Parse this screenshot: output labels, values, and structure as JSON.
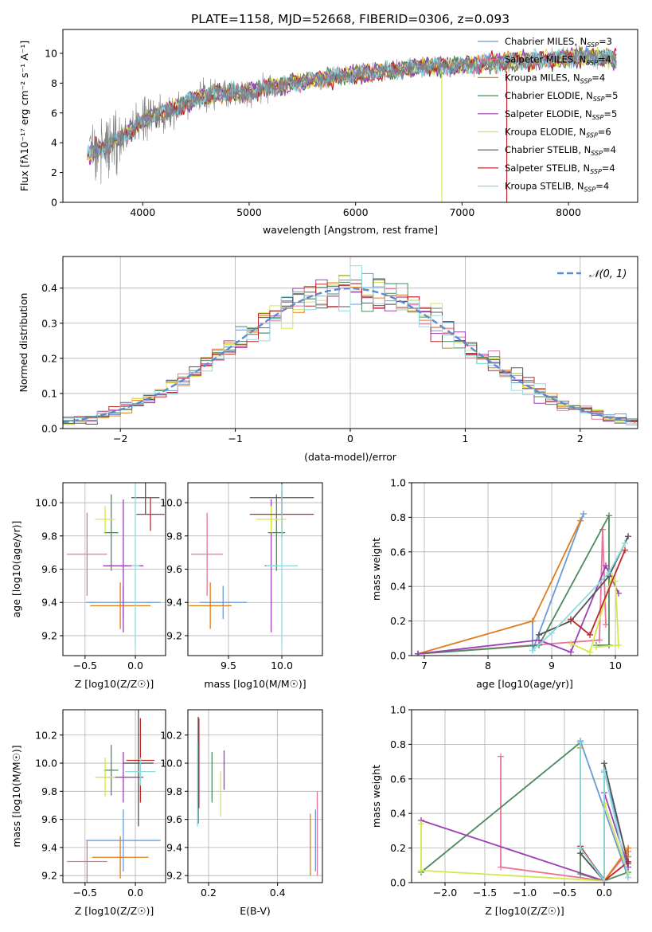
{
  "figure": {
    "title": "PLATE=1158, MJD=52668, FIBERID=0306, z=0.093"
  },
  "model_colors": {
    "Chabrier MILES": "#6a9bd8",
    "Salpeter MILES": "#e8749a",
    "Kroupa MILES": "#e07b1a",
    "Chabrier ELODIE": "#4e8a5f",
    "Salpeter ELODIE": "#9b3fb5",
    "Kroupa ELODIE": "#d4e84a",
    "Chabrier STELIB": "#555555",
    "Salpeter STELIB": "#c0282a",
    "Kroupa STELIB": "#8fdce0"
  },
  "chart_data": [
    {
      "id": "spectrum",
      "type": "line",
      "xlabel": "wavelength [Angstrom, rest frame]",
      "ylabel": "Flux [f$_\\lambda$10$^{-17}$ erg cm$^{-2}$ s$^{-1}$ A$^{-1}$]",
      "ylabel_display": "Flux [fλ10⁻¹⁷ erg cm⁻² s⁻¹ A⁻¹]",
      "xlim": [
        3250,
        8650
      ],
      "ylim": [
        0,
        11.6
      ],
      "xticks": [
        4000,
        5000,
        6000,
        7000,
        8000
      ],
      "yticks": [
        0,
        2,
        4,
        6,
        8,
        10
      ],
      "legend_position": "top-right",
      "legend": [
        {
          "model": "Chabrier MILES",
          "label": "Chabrier MILES, N",
          "sub": "SSP",
          "suffix": "=3"
        },
        {
          "model": "Salpeter MILES",
          "label": "Salpeter MILES, N",
          "sub": "SSP",
          "suffix": "=4"
        },
        {
          "model": "Kroupa MILES",
          "label": "Kroupa MILES, N",
          "sub": "SSP",
          "suffix": "=4"
        },
        {
          "model": "Chabrier ELODIE",
          "label": "Chabrier ELODIE, N",
          "sub": "SSP",
          "suffix": "=5"
        },
        {
          "model": "Salpeter ELODIE",
          "label": "Salpeter ELODIE, N",
          "sub": "SSP",
          "suffix": "=5"
        },
        {
          "model": "Kroupa ELODIE",
          "label": "Kroupa ELODIE, N",
          "sub": "SSP",
          "suffix": "=6"
        },
        {
          "model": "Chabrier STELIB",
          "label": "Chabrier STELIB, N",
          "sub": "SSP",
          "suffix": "=4"
        },
        {
          "model": "Salpeter STELIB",
          "label": "Salpeter STELIB, N",
          "sub": "SSP",
          "suffix": "=4"
        },
        {
          "model": "Kroupa STELIB",
          "label": "Kroupa STELIB, N",
          "sub": "SSP",
          "suffix": "=4"
        }
      ],
      "continuum_anchors": {
        "x": [
          3500,
          3560,
          3650,
          3800,
          3950,
          4100,
          4300,
          4500,
          4700,
          5000,
          5200,
          5500,
          5800,
          6000,
          6300,
          6600,
          7000,
          7400,
          7800,
          8200,
          8450
        ],
        "y": [
          3.4,
          3.8,
          3.9,
          4.3,
          5.2,
          5.8,
          6.3,
          7.0,
          7.3,
          7.4,
          7.7,
          8.1,
          8.4,
          8.6,
          8.8,
          9.1,
          9.2,
          9.4,
          9.6,
          9.8,
          9.6
        ]
      },
      "data_noise_sigma": 1.4,
      "spikes": [
        {
          "model": "Kroupa ELODIE",
          "x": 6810
        },
        {
          "model": "Salpeter STELIB",
          "x": 7420
        }
      ]
    },
    {
      "id": "residuals",
      "type": "histogram",
      "xlabel": "(data-model)/error",
      "ylabel": "Normed distribution",
      "xlim": [
        -2.5,
        2.5
      ],
      "ylim": [
        0,
        0.49
      ],
      "xticks": [
        -2,
        -1,
        0,
        1,
        2
      ],
      "yticks": [
        0.0,
        0.1,
        0.2,
        0.3,
        0.4
      ],
      "bin_width": 0.1,
      "reference_curve": {
        "name": "N(0,1)",
        "label_display": "𝒩(0, 1)",
        "sigma": 1.0,
        "color": "#5b8bd0"
      },
      "legend_position": "top-right"
    },
    {
      "id": "age_vs_Z",
      "type": "errorbar",
      "xlabel": "Z [log10(Z/Z☉)]",
      "ylabel": "age  [log10(age/yr)]",
      "xlim": [
        -0.72,
        0.3
      ],
      "ylim": [
        9.08,
        10.12
      ],
      "xticks": [
        -0.5,
        0.0
      ],
      "yticks": [
        9.2,
        9.4,
        9.6,
        9.8,
        10.0
      ],
      "points": [
        {
          "model": "Chabrier MILES",
          "x": -0.12,
          "xerr": 0.37,
          "y": 9.4,
          "yerr": 0.1
        },
        {
          "model": "Salpeter MILES",
          "x": -0.48,
          "xerr": 0.2,
          "y": 9.69,
          "yerr": 0.25
        },
        {
          "model": "Kroupa MILES",
          "x": -0.15,
          "xerr": 0.3,
          "y": 9.38,
          "yerr": 0.14
        },
        {
          "model": "Chabrier ELODIE",
          "x": -0.24,
          "xerr": 0.07,
          "y": 9.82,
          "yerr": 0.23
        },
        {
          "model": "Salpeter ELODIE",
          "x": -0.12,
          "xerr": 0.2,
          "y": 9.62,
          "yerr": 0.4
        },
        {
          "model": "Kroupa ELODIE",
          "x": -0.3,
          "xerr": 0.1,
          "y": 9.9,
          "yerr": 0.08
        },
        {
          "model": "Chabrier STELIB",
          "x": 0.1,
          "xerr": 0.14,
          "y": 10.03,
          "yerr": 0.1
        },
        {
          "model": "Salpeter STELIB",
          "x": 0.15,
          "xerr": 0.14,
          "y": 9.93,
          "yerr": 0.1
        },
        {
          "model": "Kroupa STELIB",
          "x": 0.0,
          "xerr": 0.04,
          "y": 9.62,
          "yerr": 0.49
        }
      ]
    },
    {
      "id": "age_vs_mass",
      "type": "errorbar",
      "xlabel": "mass [log10(M/M☉)]",
      "ylabel": "",
      "xlim": [
        9.12,
        10.38
      ],
      "ylim": [
        9.08,
        10.12
      ],
      "xticks": [
        9.5,
        10.0
      ],
      "yticks": [
        9.2,
        9.4,
        9.6,
        9.8,
        10.0
      ],
      "points": [
        {
          "model": "Chabrier MILES",
          "x": 9.45,
          "xerr": 0.22,
          "y": 9.4,
          "yerr": 0.1
        },
        {
          "model": "Salpeter MILES",
          "x": 9.3,
          "xerr": 0.15,
          "y": 9.69,
          "yerr": 0.25
        },
        {
          "model": "Kroupa MILES",
          "x": 9.33,
          "xerr": 0.2,
          "y": 9.38,
          "yerr": 0.14
        },
        {
          "model": "Chabrier ELODIE",
          "x": 9.95,
          "xerr": 0.08,
          "y": 9.82,
          "yerr": 0.23
        },
        {
          "model": "Salpeter ELODIE",
          "x": 9.9,
          "xerr": 0.06,
          "y": 9.62,
          "yerr": 0.4
        },
        {
          "model": "Kroupa ELODIE",
          "x": 9.9,
          "xerr": 0.14,
          "y": 9.9,
          "yerr": 0.08
        },
        {
          "model": "Chabrier STELIB",
          "x": 10.0,
          "xerr": 0.3,
          "y": 10.03,
          "yerr": 0.1
        },
        {
          "model": "Salpeter STELIB",
          "x": 10.0,
          "xerr": 0.3,
          "y": 9.93,
          "yerr": 0.14
        },
        {
          "model": "Kroupa STELIB",
          "x": 10.0,
          "xerr": 0.15,
          "y": 9.62,
          "yerr": 0.49
        }
      ]
    },
    {
      "id": "weight_vs_age",
      "type": "line",
      "xlabel": "age  [log10(age/yr)]",
      "ylabel": "mass weight",
      "xlim": [
        6.8,
        10.35
      ],
      "ylim": [
        0,
        1.0
      ],
      "xticks": [
        7,
        8,
        9,
        10
      ],
      "yticks": [
        0.0,
        0.2,
        0.4,
        0.6,
        0.8,
        1.0
      ],
      "series": [
        {
          "model": "Chabrier MILES",
          "x": [
            8.7,
            8.7,
            9.5
          ],
          "y": [
            0.2,
            0.03,
            0.82
          ]
        },
        {
          "model": "Salpeter MILES",
          "x": [
            6.9,
            9.75,
            9.8,
            9.85
          ],
          "y": [
            0.01,
            0.09,
            0.73,
            0.18
          ]
        },
        {
          "model": "Kroupa MILES",
          "x": [
            6.9,
            8.7,
            9.45
          ],
          "y": [
            0.01,
            0.2,
            0.78
          ]
        },
        {
          "model": "Chabrier ELODIE",
          "x": [
            6.9,
            8.8,
            9.9,
            9.9,
            9.7
          ],
          "y": [
            0.01,
            0.06,
            0.81,
            0.06,
            0.06
          ]
        },
        {
          "model": "Salpeter ELODIE",
          "x": [
            6.9,
            8.8,
            9.3,
            9.85,
            10.05
          ],
          "y": [
            0.01,
            0.09,
            0.02,
            0.52,
            0.36
          ]
        },
        {
          "model": "Kroupa ELODIE",
          "x": [
            9.3,
            9.6,
            9.95,
            10.0,
            10.05,
            9.7
          ],
          "y": [
            0.07,
            0.02,
            0.46,
            0.43,
            0.06,
            0.05
          ]
        },
        {
          "model": "Chabrier STELIB",
          "x": [
            8.8,
            9.3,
            9.9,
            10.2
          ],
          "y": [
            0.12,
            0.2,
            0.46,
            0.69
          ]
        },
        {
          "model": "Salpeter STELIB",
          "x": [
            9.3,
            9.6,
            10.15
          ],
          "y": [
            0.21,
            0.12,
            0.61
          ]
        },
        {
          "model": "Kroupa STELIB",
          "x": [
            8.7,
            9.0,
            9.9,
            10.15
          ],
          "y": [
            0.03,
            0.13,
            0.48,
            0.65
          ]
        }
      ]
    },
    {
      "id": "mass_vs_Z",
      "type": "errorbar",
      "xlabel": "Z [log10(Z/Z☉)]",
      "ylabel": "mass [log10(M/M☉)]",
      "xlim": [
        -0.72,
        0.3
      ],
      "ylim": [
        9.15,
        10.38
      ],
      "xticks": [
        -0.5,
        0.0
      ],
      "yticks": [
        9.2,
        9.4,
        9.6,
        9.8,
        10.0,
        10.2
      ],
      "points": [
        {
          "model": "Chabrier MILES",
          "x": -0.12,
          "xerr": 0.37,
          "y": 9.45,
          "yerr": 0.22
        },
        {
          "model": "Salpeter MILES",
          "x": -0.48,
          "xerr": 0.2,
          "y": 9.3,
          "yerr": 0.15
        },
        {
          "model": "Kroupa MILES",
          "x": -0.15,
          "xerr": 0.28,
          "y": 9.33,
          "yerr": 0.15
        },
        {
          "model": "Chabrier ELODIE",
          "x": -0.24,
          "xerr": 0.07,
          "y": 9.95,
          "yerr": 0.18
        },
        {
          "model": "Salpeter ELODIE",
          "x": -0.12,
          "xerr": 0.2,
          "y": 9.9,
          "yerr": 0.18
        },
        {
          "model": "Kroupa ELODIE",
          "x": -0.3,
          "xerr": 0.1,
          "y": 9.9,
          "yerr": 0.14
        },
        {
          "model": "Chabrier STELIB",
          "x": 0.03,
          "xerr": 0.15,
          "y": 10.0,
          "yerr": 0.45
        },
        {
          "model": "Salpeter STELIB",
          "x": 0.05,
          "xerr": 0.14,
          "y": 10.02,
          "yerr": 0.3
        },
        {
          "model": "Kroupa STELIB",
          "x": 0.05,
          "xerr": 0.15,
          "y": 9.94,
          "yerr": 0.1
        }
      ]
    },
    {
      "id": "mass_vs_ebv",
      "type": "errorbar",
      "xlabel": "E(B-V)",
      "ylabel": "",
      "xlim": [
        0.14,
        0.53
      ],
      "ylim": [
        9.15,
        10.38
      ],
      "xticks": [
        0.2,
        0.4
      ],
      "yticks": [
        9.2,
        9.4,
        9.6,
        9.8,
        10.0,
        10.2
      ],
      "points": [
        {
          "model": "Chabrier MILES",
          "x": 0.51,
          "xerr": 0,
          "y": 9.45,
          "yerr": 0.22
        },
        {
          "model": "Salpeter MILES",
          "x": 0.515,
          "xerr": 0,
          "y": 9.5,
          "yerr": 0.3
        },
        {
          "model": "Kroupa MILES",
          "x": 0.495,
          "xerr": 0,
          "y": 9.42,
          "yerr": 0.22
        },
        {
          "model": "Chabrier ELODIE",
          "x": 0.21,
          "xerr": 0,
          "y": 9.9,
          "yerr": 0.18
        },
        {
          "model": "Salpeter ELODIE",
          "x": 0.245,
          "xerr": 0,
          "y": 9.95,
          "yerr": 0.14
        },
        {
          "model": "Kroupa ELODIE",
          "x": 0.235,
          "xerr": 0,
          "y": 9.78,
          "yerr": 0.16
        },
        {
          "model": "Chabrier STELIB",
          "x": 0.17,
          "xerr": 0,
          "y": 9.95,
          "yerr": 0.38
        },
        {
          "model": "Salpeter STELIB",
          "x": 0.172,
          "xerr": 0,
          "y": 10.0,
          "yerr": 0.32
        },
        {
          "model": "Kroupa STELIB",
          "x": 0.168,
          "xerr": 0,
          "y": 9.85,
          "yerr": 0.3
        }
      ]
    },
    {
      "id": "weight_vs_Z",
      "type": "line",
      "xlabel": "Z [log10(Z/Z☉)]",
      "ylabel": "mass weight",
      "xlim": [
        -2.42,
        0.42
      ],
      "ylim": [
        0,
        1.0
      ],
      "xticks": [
        -2.0,
        -1.5,
        -1.0,
        -0.5,
        0.0
      ],
      "yticks": [
        0.0,
        0.2,
        0.4,
        0.6,
        0.8,
        1.0
      ],
      "series": [
        {
          "model": "Chabrier MILES",
          "x": [
            0.3,
            -0.3,
            -0.3,
            0.0,
            0.0,
            0.3
          ],
          "y": [
            0.03,
            0.82,
            0.2,
            0.02,
            0.64,
            0.12
          ]
        },
        {
          "model": "Salpeter MILES",
          "x": [
            -1.3,
            -1.3,
            0.0,
            0.3,
            0.3
          ],
          "y": [
            0.73,
            0.09,
            0.01,
            0.18,
            0.12
          ]
        },
        {
          "model": "Kroupa MILES",
          "x": [
            -0.3,
            -0.3,
            0.0,
            0.3,
            0.3
          ],
          "y": [
            0.78,
            0.17,
            0.01,
            0.2,
            0.15
          ]
        },
        {
          "model": "Chabrier ELODIE",
          "x": [
            -2.3,
            -0.3,
            -0.3,
            0.0,
            0.3
          ],
          "y": [
            0.06,
            0.81,
            0.05,
            0.01,
            0.06
          ]
        },
        {
          "model": "Salpeter ELODIE",
          "x": [
            -2.3,
            0.0,
            0.0,
            0.3
          ],
          "y": [
            0.36,
            0.01,
            0.52,
            0.09
          ]
        },
        {
          "model": "Kroupa ELODIE",
          "x": [
            -2.3,
            -2.3,
            0.0,
            0.0,
            0.3
          ],
          "y": [
            0.34,
            0.07,
            0.01,
            0.46,
            0.05
          ]
        },
        {
          "model": "Chabrier STELIB",
          "x": [
            -0.3,
            -0.3,
            0.0,
            0.0,
            0.3
          ],
          "y": [
            0.2,
            0.17,
            0.01,
            0.69,
            0.11
          ]
        },
        {
          "model": "Salpeter STELIB",
          "x": [
            -0.3,
            0.0,
            0.3
          ],
          "y": [
            0.21,
            0.01,
            0.12
          ]
        },
        {
          "model": "Kroupa STELIB",
          "x": [
            -0.3,
            -0.3,
            0.0,
            0.0,
            0.3
          ],
          "y": [
            0.81,
            0.2,
            0.01,
            0.65,
            0.03
          ]
        }
      ]
    }
  ]
}
